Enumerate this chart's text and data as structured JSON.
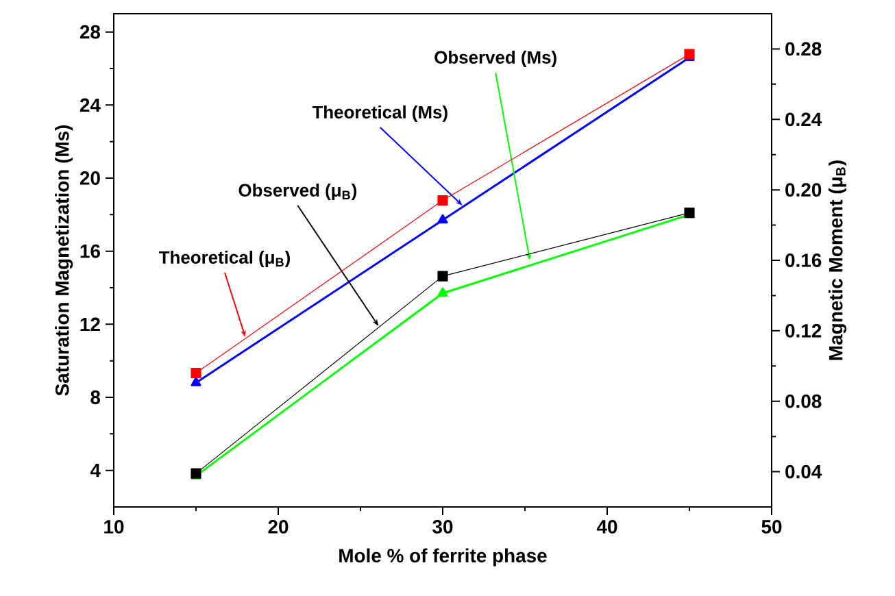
{
  "chart_data": {
    "type": "line",
    "xlabel": "Mole % of ferrite phase",
    "ylabel": "Saturation Magnetization (Ms)",
    "y2label": "Magnetic Moment (μ$_{B}$)",
    "x": [
      15,
      30,
      45
    ],
    "xlim": [
      10,
      50
    ],
    "xticks": [
      10,
      20,
      30,
      40,
      50
    ],
    "ylim": [
      2,
      29
    ],
    "yticks": [
      4,
      8,
      12,
      16,
      20,
      24,
      28
    ],
    "y2lim": [
      0.02,
      0.3
    ],
    "y2ticks": [
      0.04,
      0.08,
      0.12,
      0.16,
      {
        "value": 0.2,
        "label": "0.20"
      },
      0.24,
      0.28
    ],
    "line_style": "solid",
    "grid": false,
    "legend": false,
    "series": [
      {
        "color": "#ff0000",
        "marker": "square",
        "axis": "y2",
        "values": [
          0.096,
          0.194,
          0.277
        ]
      },
      {
        "color": "#0000ff",
        "marker": "triangle",
        "values": [
          8.8,
          17.7,
          26.6
        ]
      },
      {
        "color": "#000000",
        "marker": "square",
        "axis": "y2",
        "values": [
          0.039,
          0.151,
          0.187
        ]
      },
      {
        "color": "#00ff00",
        "marker": "triangle",
        "values": [
          3.7,
          13.7,
          18.0
        ]
      }
    ],
    "annotations": [
      {
        "text": "Theoretical (μ$_{B}$)",
        "x": 18,
        "y": 11.3
      },
      {
        "text": "Theoretical (Ms)",
        "x": 31.2,
        "y": 18.5
      },
      {
        "text": "Observed (μ$_{B}$)",
        "x": 26.1,
        "y": 11.9
      },
      {
        "text": "Observed (Ms)",
        "x": 35.3,
        "y": 15.5
      }
    ]
  }
}
